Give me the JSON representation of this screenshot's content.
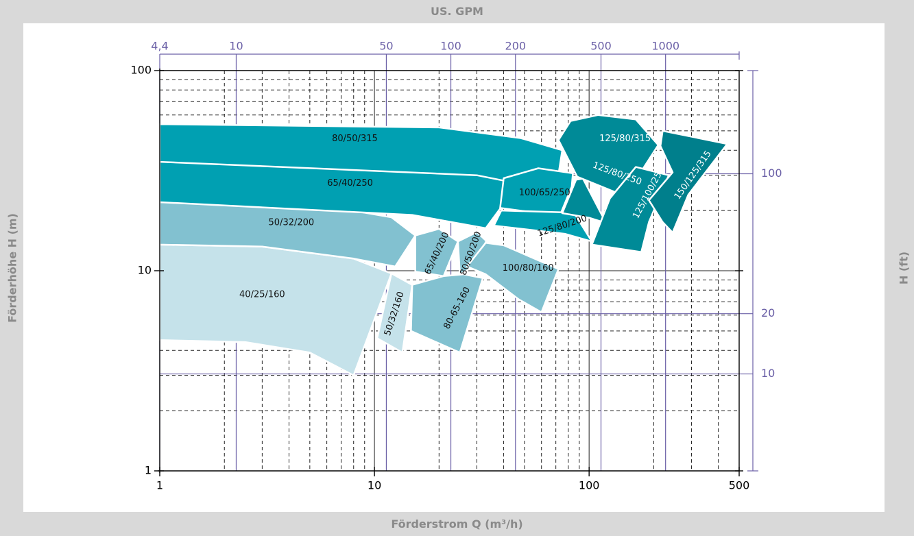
{
  "colors": {
    "frame": "#d9d9d9",
    "axis_blue": "#6a5fa6",
    "grid": "#222222",
    "zone_lightest": "#c5e2ea",
    "zone_light": "#82c1d0",
    "zone_mid": "#00a0b2",
    "zone_dark": "#008a97",
    "zone_darkest": "#007f8c"
  },
  "labels": {
    "top_axis_title": "US. GPM",
    "bottom_axis_title": "Förderstrom Q (m³/h)",
    "left_axis_title": "Förderhöhe H (m)",
    "right_axis_title": "H (ft)"
  },
  "chart_data": {
    "type": "area",
    "title": "",
    "xlabel": "Förderstrom Q (m³/h)",
    "ylabel": "Förderhöhe H (m)",
    "x_scale": "log",
    "y_scale": "log",
    "xlim": [
      1,
      500
    ],
    "ylim": [
      1,
      100
    ],
    "x_ticks": [
      {
        "value": 1,
        "label": "1"
      },
      {
        "value": 10,
        "label": "10"
      },
      {
        "value": 100,
        "label": "100"
      },
      {
        "value": 500,
        "label": "500"
      }
    ],
    "y_ticks": [
      {
        "value": 1,
        "label": "1"
      },
      {
        "value": 10,
        "label": "10"
      },
      {
        "value": 100,
        "label": "100"
      }
    ],
    "secondary_x_axis": {
      "label": "US. GPM",
      "ticks": [
        {
          "q": 1,
          "label": "4,4"
        },
        {
          "q": 2.27,
          "label": "10"
        },
        {
          "q": 11.36,
          "label": "50"
        },
        {
          "q": 22.7,
          "label": "100"
        },
        {
          "q": 45.4,
          "label": "200"
        },
        {
          "q": 113.6,
          "label": "500"
        },
        {
          "q": 227.1,
          "label": "1000"
        }
      ]
    },
    "secondary_y_axis": {
      "label": "H (ft)",
      "ticks": [
        {
          "h": 3.05,
          "label": "10"
        },
        {
          "h": 6.1,
          "label": "20"
        },
        {
          "h": 30.5,
          "label": "100"
        }
      ]
    },
    "grid": true,
    "zones": [
      {
        "label": "40/25/160",
        "shade": "zone_lightest",
        "text_rotation": 0,
        "polygon": [
          [
            1,
            13.5
          ],
          [
            3,
            13.2
          ],
          [
            8,
            11.5
          ],
          [
            12,
            9.7
          ],
          [
            8,
            3.0
          ],
          [
            5,
            3.9
          ],
          [
            2.5,
            4.4
          ],
          [
            1,
            4.5
          ]
        ],
        "label_pos": [
          3,
          7.6
        ]
      },
      {
        "label": "50/32/160",
        "shade": "zone_lightest",
        "text_rotation": -72,
        "polygon": [
          [
            12,
            9.7
          ],
          [
            15,
            8.5
          ],
          [
            13.5,
            3.9
          ],
          [
            10.3,
            4.6
          ]
        ],
        "label_pos": [
          12.4,
          6.1
        ]
      },
      {
        "label": "50/32/200",
        "shade": "zone_light",
        "text_rotation": 0,
        "polygon": [
          [
            1,
            22
          ],
          [
            6,
            21
          ],
          [
            12,
            18.5
          ],
          [
            15.5,
            15
          ],
          [
            12.5,
            10.5
          ],
          [
            8,
            11.5
          ],
          [
            3,
            13.2
          ],
          [
            1,
            13.5
          ]
        ],
        "label_pos": [
          4.1,
          17.4
        ]
      },
      {
        "label": "65/40/200",
        "shade": "zone_light",
        "text_rotation": -65,
        "polygon": [
          [
            15.5,
            15
          ],
          [
            20,
            16.2
          ],
          [
            24.5,
            14
          ],
          [
            21,
            9.4
          ],
          [
            15.5,
            9.9
          ]
        ],
        "label_pos": [
          19.6,
          12.2
        ]
      },
      {
        "label": "80/50/200",
        "shade": "zone_light",
        "text_rotation": -70,
        "polygon": [
          [
            24.5,
            14
          ],
          [
            30,
            15.6
          ],
          [
            33.2,
            14.1
          ],
          [
            29.5,
            10.6
          ],
          [
            25,
            9.6
          ]
        ],
        "label_pos": [
          28.2,
          12.2
        ]
      },
      {
        "label": "80-65-160",
        "shade": "zone_light",
        "text_rotation": -62,
        "polygon": [
          [
            15,
            8.5
          ],
          [
            21,
            9.4
          ],
          [
            26,
            9.6
          ],
          [
            32,
            9.2
          ],
          [
            25,
            3.9
          ],
          [
            14.8,
            5
          ]
        ],
        "label_pos": [
          24.3,
          6.5
        ]
      },
      {
        "label": "100/80/160",
        "shade": "zone_light",
        "text_rotation": 0,
        "polygon": [
          [
            33,
            13.8
          ],
          [
            40,
            13.4
          ],
          [
            72,
            10.2
          ],
          [
            60,
            6.2
          ],
          [
            47,
            7.2
          ],
          [
            33,
            9.6
          ],
          [
            27,
            10.5
          ]
        ],
        "label_pos": [
          52,
          10.3
        ]
      },
      {
        "label": "65/40/250",
        "shade": "zone_mid",
        "text_rotation": 0,
        "polygon": [
          [
            1,
            35
          ],
          [
            15,
            33
          ],
          [
            40,
            29
          ],
          [
            40.5,
            22
          ],
          [
            33,
            16.3
          ],
          [
            15,
            19
          ],
          [
            1,
            22
          ]
        ],
        "label_pos": [
          7.7,
          27.3
        ]
      },
      {
        "label": "80/50/315",
        "shade": "zone_mid",
        "text_rotation": 0,
        "polygon": [
          [
            1,
            54
          ],
          [
            20,
            52
          ],
          [
            48,
            46
          ],
          [
            75,
            40
          ],
          [
            70,
            25
          ],
          [
            30,
            30
          ],
          [
            1,
            35
          ]
        ],
        "label_pos": [
          8.1,
          45.7
        ]
      },
      {
        "label": "100/65/250",
        "shade": "zone_mid",
        "text_rotation": 0,
        "polygon": [
          [
            40,
            29
          ],
          [
            58,
            32.5
          ],
          [
            84,
            30.7
          ],
          [
            83,
            26.3
          ],
          [
            73,
            18.8
          ],
          [
            38.5,
            20.6
          ]
        ],
        "label_pos": [
          62,
          24.5
        ]
      },
      {
        "label": "125/80/200",
        "shade": "zone_mid",
        "text_rotation": -18,
        "polygon": [
          [
            39,
            20
          ],
          [
            85,
            19.5
          ],
          [
            103,
            14
          ],
          [
            77,
            15.3
          ],
          [
            36,
            16.8
          ]
        ],
        "label_pos": [
          75,
          16.7
        ]
      },
      {
        "label": "125/80/250",
        "shade": "zone_dark",
        "text_rotation": 20,
        "polygon": [
          [
            78,
            42
          ],
          [
            100,
            37.5
          ],
          [
            120,
            30
          ],
          [
            87,
            28.5
          ],
          [
            75,
            19.4
          ],
          [
            100,
            18.4
          ],
          [
            120,
            17.3
          ]
        ],
        "label_pos": [
          135,
          30.5
        ]
      },
      {
        "label": "125/80/315",
        "shade": "zone_dark",
        "text_rotation": 0,
        "polygon": [
          [
            82,
            56
          ],
          [
            110,
            60
          ],
          [
            165,
            57
          ],
          [
            210,
            42.5
          ],
          [
            160,
            27
          ],
          [
            135,
            24.5
          ],
          [
            88,
            29.5
          ],
          [
            72,
            45
          ]
        ],
        "label_pos": [
          147,
          45.7
        ]
      },
      {
        "label": "125/100/250",
        "shade": "zone_dark",
        "text_rotation": -62,
        "polygon": [
          [
            165,
            33
          ],
          [
            235,
            30
          ],
          [
            190,
            17.5
          ],
          [
            175,
            12.4
          ],
          [
            103,
            13.5
          ],
          [
            125,
            23
          ]
        ],
        "label_pos": [
          190,
          24.5
        ]
      },
      {
        "label": "150/125/315",
        "shade": "zone_darkest",
        "text_rotation": -55,
        "polygon": [
          [
            220,
            50
          ],
          [
            440,
            43
          ],
          [
            290,
            24
          ],
          [
            245,
            15.5
          ],
          [
            220,
            17.5
          ],
          [
            190,
            22.5
          ],
          [
            245,
            31
          ],
          [
            215,
            42
          ]
        ],
        "label_pos": [
          305,
          30
        ]
      }
    ]
  }
}
